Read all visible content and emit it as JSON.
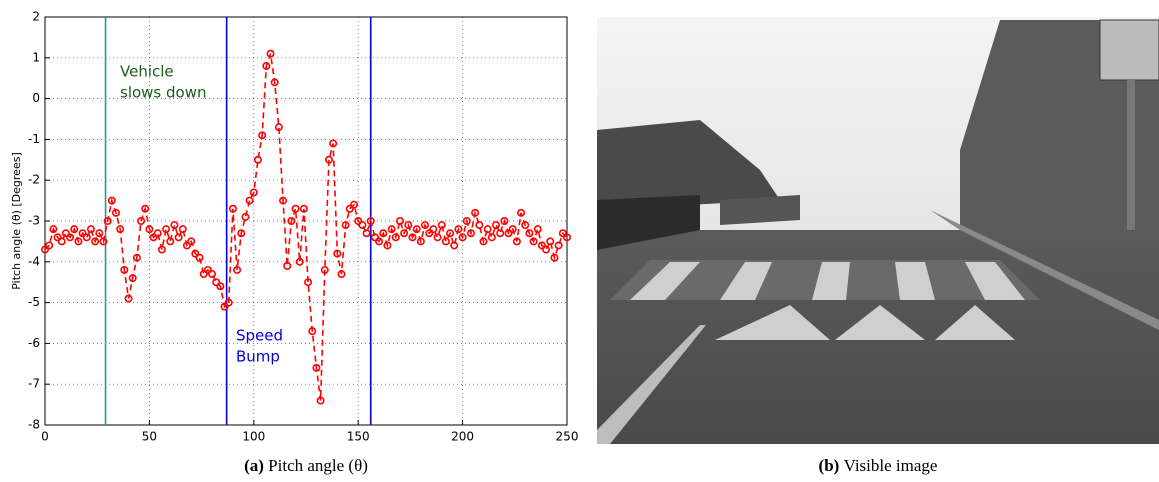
{
  "chart_data": {
    "type": "line",
    "ylabel": "Pitch angle (θ) [Degrees]",
    "x": [
      0,
      2,
      4,
      6,
      8,
      10,
      12,
      14,
      16,
      18,
      20,
      22,
      24,
      26,
      28,
      30,
      32,
      34,
      36,
      38,
      40,
      42,
      44,
      46,
      48,
      50,
      52,
      54,
      56,
      58,
      60,
      62,
      64,
      66,
      68,
      70,
      72,
      74,
      76,
      78,
      80,
      82,
      84,
      86,
      88,
      90,
      92,
      94,
      96,
      98,
      100,
      102,
      104,
      106,
      108,
      110,
      112,
      114,
      116,
      118,
      120,
      122,
      124,
      126,
      128,
      130,
      132,
      134,
      136,
      138,
      140,
      142,
      144,
      146,
      148,
      150,
      152,
      154,
      156,
      158,
      160,
      162,
      164,
      166,
      168,
      170,
      172,
      174,
      176,
      178,
      180,
      182,
      184,
      186,
      188,
      190,
      192,
      194,
      196,
      198,
      200,
      202,
      204,
      206,
      208,
      210,
      212,
      214,
      216,
      218,
      220,
      222,
      224,
      226,
      228,
      230,
      232,
      234,
      236,
      238,
      240,
      242,
      244,
      246,
      248,
      250
    ],
    "series": [
      {
        "name": "Pitch angle",
        "color": "#ff0000",
        "values": [
          -3.7,
          -3.6,
          -3.2,
          -3.4,
          -3.5,
          -3.3,
          -3.4,
          -3.2,
          -3.5,
          -3.3,
          -3.4,
          -3.2,
          -3.5,
          -3.3,
          -3.5,
          -3.0,
          -2.5,
          -2.8,
          -3.2,
          -4.2,
          -4.9,
          -4.4,
          -3.9,
          -3.0,
          -2.7,
          -3.2,
          -3.4,
          -3.3,
          -3.7,
          -3.2,
          -3.5,
          -3.1,
          -3.4,
          -3.2,
          -3.6,
          -3.5,
          -3.8,
          -3.9,
          -4.3,
          -4.2,
          -4.3,
          -4.5,
          -4.6,
          -5.1,
          -5.0,
          -2.7,
          -4.2,
          -3.3,
          -2.9,
          -2.5,
          -2.3,
          -1.5,
          -0.9,
          0.8,
          1.1,
          0.4,
          -0.7,
          -2.5,
          -4.1,
          -3.0,
          -2.7,
          -4.0,
          -2.7,
          -4.5,
          -5.7,
          -6.6,
          -7.4,
          -4.2,
          -1.5,
          -1.1,
          -3.8,
          -4.3,
          -3.1,
          -2.7,
          -2.6,
          -3.0,
          -3.1,
          -3.3,
          -3.0,
          -3.4,
          -3.5,
          -3.3,
          -3.6,
          -3.2,
          -3.4,
          -3.0,
          -3.3,
          -3.1,
          -3.4,
          -3.2,
          -3.5,
          -3.1,
          -3.3,
          -3.2,
          -3.4,
          -3.1,
          -3.5,
          -3.3,
          -3.6,
          -3.2,
          -3.4,
          -3.0,
          -3.3,
          -2.8,
          -3.1,
          -3.5,
          -3.2,
          -3.4,
          -3.1,
          -3.3,
          -3.0,
          -3.3,
          -3.2,
          -3.5,
          -2.8,
          -3.1,
          -3.3,
          -3.5,
          -3.2,
          -3.6,
          -3.7,
          -3.5,
          -3.9,
          -3.6,
          -3.3,
          -3.4
        ]
      }
    ],
    "xlim": [
      0,
      250
    ],
    "xticks": [
      0,
      50,
      100,
      150,
      200,
      250
    ],
    "ylim": [
      -8,
      2
    ],
    "yticks": [
      -8,
      -7,
      -6,
      -5,
      -4,
      -3,
      -2,
      -1,
      0,
      1,
      2
    ],
    "grid": true,
    "vlines": [
      {
        "x": 29,
        "color": "#1f9a94"
      },
      {
        "x": 87,
        "color": "#0000dd"
      },
      {
        "x": 156,
        "color": "#0000dd"
      }
    ],
    "annotations": [
      {
        "lines": [
          "Vehicle",
          "slows down"
        ],
        "color": "#1a5c1a"
      },
      {
        "lines": [
          "Speed",
          "Bump"
        ],
        "color": "#0000dd"
      }
    ]
  },
  "captions": [
    {
      "label": "(a)",
      "text": "Pitch angle (θ)"
    },
    {
      "label": "(b)",
      "text": "Visible image"
    }
  ]
}
